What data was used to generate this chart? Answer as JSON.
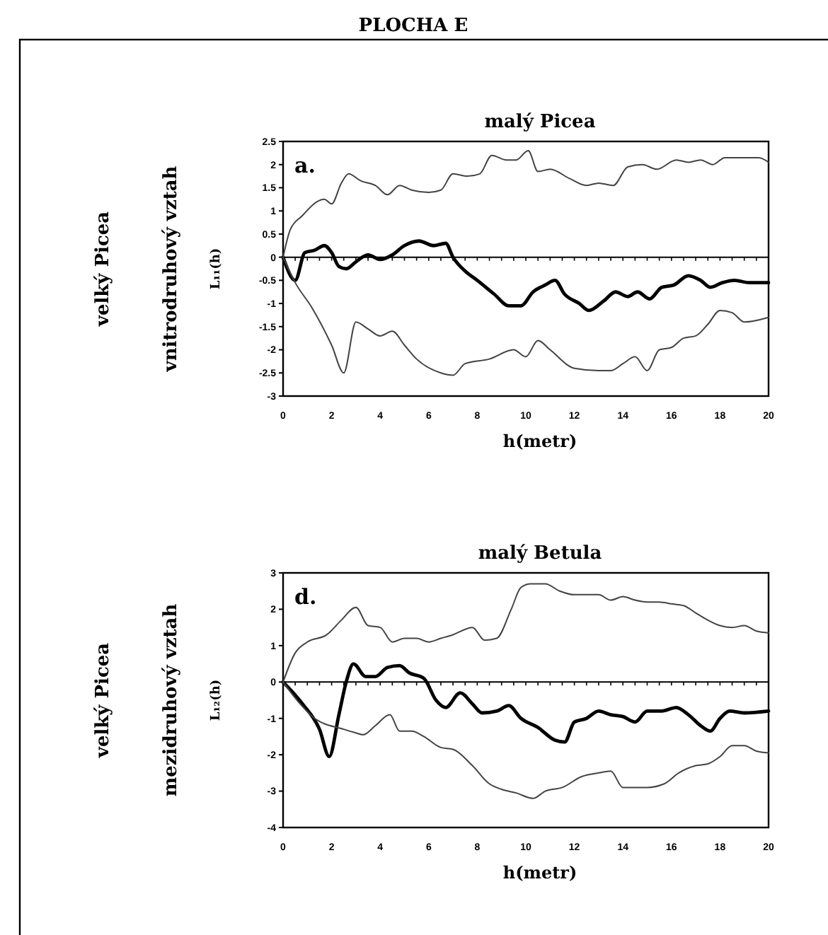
{
  "chart_data": [
    {
      "type": "line",
      "title": "PLOCHA E",
      "subtitle": "malý Picea",
      "xlabel": "h(metr)",
      "ylabel": "L₁₁(h)",
      "annotations": [
        "velký Picea",
        "vnitrodruhový vztah",
        "a."
      ],
      "xlim": [
        0,
        20
      ],
      "xticks": [
        0,
        2,
        4,
        6,
        8,
        10,
        12,
        14,
        16,
        18,
        20
      ],
      "ylim": [
        -3,
        2.5
      ],
      "yticks": [
        -3,
        -2.5,
        -2,
        -1.5,
        -1,
        -0.5,
        0,
        0.5,
        1,
        1.5,
        2,
        2.5
      ],
      "marker": "none",
      "line_style": "solid",
      "ref_lines": [
        {
          "axis": "y",
          "value": 0,
          "color": "#000000"
        }
      ],
      "series": [
        {
          "color": "#000000",
          "x": [
            0,
            0.5,
            0.9,
            1.3,
            1.7,
            2,
            2.3,
            2.6,
            3,
            3.5,
            4,
            4.5,
            5,
            5.6,
            6.2,
            6.7,
            7,
            7.5,
            8,
            8.7,
            9.3,
            9.8,
            10.3,
            10.8,
            11.2,
            11.6,
            12.2,
            12.6,
            13.2,
            13.7,
            14.2,
            14.6,
            15.1,
            15.6,
            16.1,
            16.7,
            17.2,
            17.6,
            18.1,
            18.6,
            19.2,
            20
          ],
          "values": [
            0,
            -0.5,
            0.1,
            0.15,
            0.25,
            0.1,
            -0.2,
            -0.25,
            -0.1,
            0.05,
            -0.05,
            0.05,
            0.25,
            0.35,
            0.25,
            0.3,
            0,
            -0.3,
            -0.5,
            -0.8,
            -1.05,
            -1.05,
            -0.75,
            -0.6,
            -0.5,
            -0.8,
            -1,
            -1.15,
            -0.95,
            -0.75,
            -0.85,
            -0.75,
            -0.9,
            -0.65,
            -0.6,
            -0.4,
            -0.5,
            -0.65,
            -0.55,
            -0.5,
            -0.55,
            -0.55
          ]
        },
        {
          "color": "#444444",
          "x": [
            0,
            0.3,
            0.8,
            1.4,
            1.7,
            2,
            2.4,
            2.7,
            3.2,
            3.8,
            4.3,
            4.8,
            5.3,
            6,
            6.5,
            7,
            7.6,
            8.1,
            8.6,
            9.2,
            9.6,
            10.1,
            10.5,
            11,
            11.8,
            12.5,
            13,
            13.6,
            14.2,
            14.8,
            15.4,
            16.2,
            16.7,
            17.2,
            17.7,
            18.2,
            19,
            19.6,
            20
          ],
          "values": [
            0,
            0.6,
            0.9,
            1.2,
            1.25,
            1.15,
            1.6,
            1.8,
            1.65,
            1.55,
            1.35,
            1.55,
            1.45,
            1.4,
            1.45,
            1.8,
            1.75,
            1.8,
            2.2,
            2.1,
            2.1,
            2.3,
            1.85,
            1.9,
            1.7,
            1.55,
            1.6,
            1.55,
            1.95,
            2,
            1.9,
            2.1,
            2.05,
            2.1,
            2,
            2.15,
            2.15,
            2.15,
            2.05
          ]
        },
        {
          "color": "#444444",
          "x": [
            0,
            0.5,
            1.2,
            2,
            2.5,
            3,
            3.5,
            4,
            4.5,
            5,
            5.5,
            6.5,
            7,
            7.5,
            8.5,
            9.5,
            10,
            10.5,
            11,
            12,
            13,
            13.5,
            14,
            14.5,
            15,
            15.5,
            16,
            16.5,
            17,
            17.5,
            18,
            18.5,
            19,
            20
          ],
          "values": [
            0,
            -0.55,
            -1.1,
            -1.9,
            -2.5,
            -1.4,
            -1.55,
            -1.7,
            -1.6,
            -1.9,
            -2.2,
            -2.5,
            -2.55,
            -2.3,
            -2.2,
            -2,
            -2.15,
            -1.8,
            -2,
            -2.4,
            -2.45,
            -2.45,
            -2.3,
            -2.15,
            -2.45,
            -2,
            -1.95,
            -1.75,
            -1.7,
            -1.45,
            -1.15,
            -1.2,
            -1.4,
            -1.3
          ]
        }
      ]
    },
    {
      "type": "line",
      "subtitle": "malý Betula",
      "xlabel": "h(metr)",
      "ylabel": "L₁₂(h)",
      "annotations": [
        "velký Picea",
        "mezidruhový vztah",
        "d."
      ],
      "xlim": [
        0,
        20
      ],
      "xticks": [
        0,
        2,
        4,
        6,
        8,
        10,
        12,
        14,
        16,
        18,
        20
      ],
      "ylim": [
        -4,
        3
      ],
      "yticks": [
        -4,
        -3,
        -2,
        -1,
        0,
        1,
        2,
        3
      ],
      "marker": "none",
      "line_style": "solid",
      "ref_lines": [
        {
          "axis": "y",
          "value": 0,
          "color": "#000000"
        }
      ],
      "series": [
        {
          "color": "#000000",
          "x": [
            0,
            0.8,
            1.5,
            1.9,
            2.3,
            2.6,
            2.9,
            3.4,
            3.8,
            4.3,
            4.8,
            5.2,
            5.8,
            6.3,
            6.7,
            7.3,
            7.8,
            8.2,
            8.8,
            9.3,
            9.8,
            10.5,
            11.2,
            11.6,
            12,
            12.5,
            13,
            13.5,
            14,
            14.5,
            15,
            15.6,
            16.2,
            16.7,
            17.2,
            17.6,
            18,
            18.4,
            19,
            20
          ],
          "values": [
            0,
            -0.6,
            -1.3,
            -2.05,
            -0.9,
            0,
            0.5,
            0.15,
            0.15,
            0.4,
            0.45,
            0.25,
            0.1,
            -0.5,
            -0.7,
            -0.3,
            -0.6,
            -0.85,
            -0.8,
            -0.65,
            -1,
            -1.25,
            -1.6,
            -1.65,
            -1.1,
            -1,
            -0.8,
            -0.9,
            -0.95,
            -1.1,
            -0.8,
            -0.8,
            -0.7,
            -0.9,
            -1.2,
            -1.35,
            -1,
            -0.8,
            -0.85,
            -0.8
          ]
        },
        {
          "color": "#444444",
          "x": [
            0,
            0.5,
            1,
            1.8,
            2.4,
            3,
            3.5,
            4,
            4.5,
            5,
            5.5,
            6,
            6.5,
            7,
            7.8,
            8.3,
            8.8,
            9.4,
            9.8,
            10.2,
            10.8,
            11.4,
            12,
            13,
            13.5,
            14,
            14.5,
            15,
            15.5,
            16,
            16.5,
            17,
            17.5,
            18,
            18.5,
            19,
            19.5,
            20
          ],
          "values": [
            0,
            0.8,
            1.1,
            1.3,
            1.7,
            2.05,
            1.55,
            1.5,
            1.1,
            1.2,
            1.2,
            1.1,
            1.2,
            1.3,
            1.5,
            1.15,
            1.2,
            2,
            2.6,
            2.7,
            2.7,
            2.5,
            2.4,
            2.4,
            2.25,
            2.35,
            2.25,
            2.2,
            2.2,
            2.15,
            2.1,
            1.9,
            1.7,
            1.55,
            1.5,
            1.55,
            1.4,
            1.35
          ]
        },
        {
          "color": "#444444",
          "x": [
            0,
            0.7,
            1.3,
            2.5,
            3,
            3.3,
            3.8,
            4.4,
            4.8,
            5.3,
            5.8,
            6.5,
            7,
            7.8,
            8.5,
            9,
            9.6,
            10.3,
            10.8,
            11.5,
            12.3,
            13,
            13.5,
            14,
            14.5,
            15,
            15.7,
            16.3,
            17,
            17.5,
            18,
            18.5,
            19,
            19.5,
            20
          ],
          "values": [
            0,
            -0.6,
            -1,
            -1.3,
            -1.4,
            -1.45,
            -1.2,
            -0.9,
            -1.35,
            -1.35,
            -1.5,
            -1.8,
            -1.85,
            -2.3,
            -2.8,
            -2.95,
            -3.05,
            -3.2,
            -3,
            -2.9,
            -2.6,
            -2.5,
            -2.45,
            -2.9,
            -2.9,
            -2.9,
            -2.8,
            -2.5,
            -2.3,
            -2.25,
            -2.05,
            -1.75,
            -1.75,
            -1.9,
            -1.95
          ]
        }
      ]
    }
  ]
}
